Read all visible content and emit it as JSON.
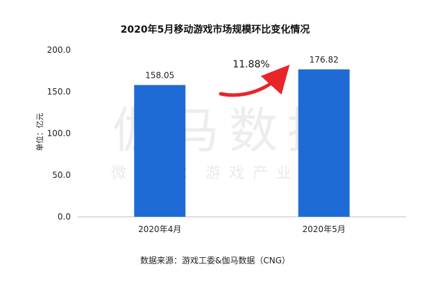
{
  "chart_data": {
    "type": "bar",
    "title": "2020年5月移动游戏市场规模环比变化情况",
    "ylabel": "单位：亿元",
    "xlabel": "",
    "categories": [
      "2020年4月",
      "2020年5月"
    ],
    "values": [
      158.05,
      176.82
    ],
    "value_labels": [
      "158.05",
      "176.82"
    ],
    "ylim": [
      0,
      200
    ],
    "yticks": [
      "0.0",
      "50.0",
      "100.0",
      "150.0",
      "200.0"
    ],
    "bar_color": "#1f6bd6",
    "growth_annotation": "11.88%",
    "arrow_color": "#e8262a",
    "grid": false,
    "legend": "none"
  },
  "source_note": "数据来源：游戏工委&伽马数据（CNG）",
  "watermark": {
    "main": "伽马数据",
    "sub": "微信号：游戏产业报告"
  }
}
